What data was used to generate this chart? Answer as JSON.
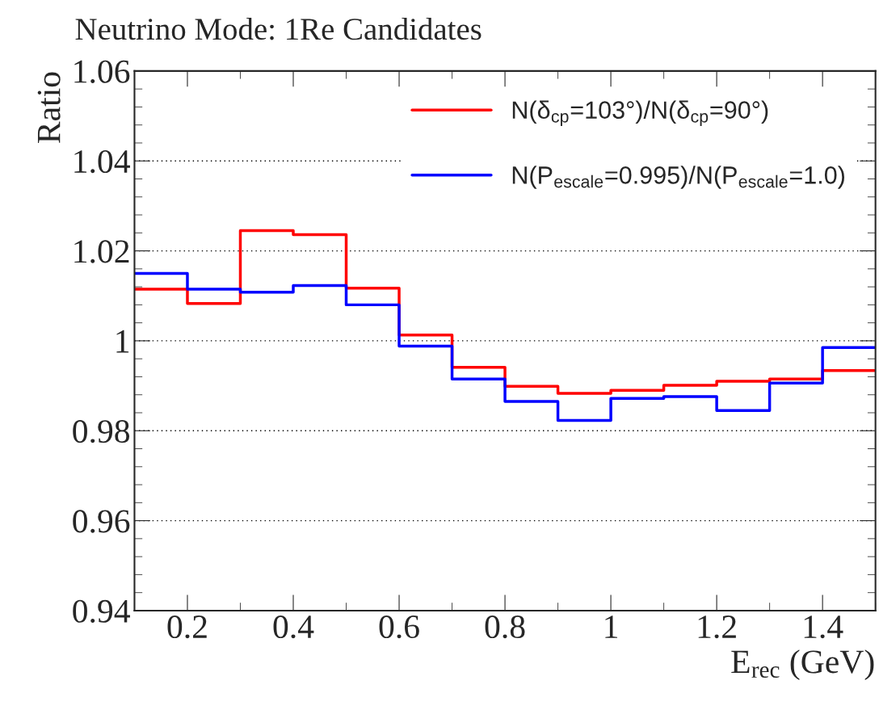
{
  "chart_data": {
    "type": "histogram",
    "title": "Neutrino Mode: 1Re Candidates",
    "xlabel": "E$_{rec}$ (GeV)",
    "ylabel": "Ratio",
    "bins": [
      0.1,
      0.2,
      0.3,
      0.4,
      0.5,
      0.6,
      0.7,
      0.8,
      0.9,
      1.0,
      1.1,
      1.2,
      1.3,
      1.4,
      1.5
    ],
    "series": [
      {
        "name": "N(δ$_{cp}$=103°)/N(δ$_{cp}$=90°)",
        "color": "#ff0000",
        "values": [
          1.0115,
          1.0083,
          1.0245,
          1.0236,
          1.0117,
          1.0013,
          0.9941,
          0.9899,
          0.9883,
          0.989,
          0.9901,
          0.991,
          0.9915,
          0.9934
        ]
      },
      {
        "name": "N(P$_{escale}$=0.995)/N(P$_{escale}$=1.0)",
        "color": "#0000ff",
        "values": [
          1.015,
          1.0115,
          1.0108,
          1.0123,
          1.008,
          0.9988,
          0.9915,
          0.9865,
          0.9823,
          0.9872,
          0.9876,
          0.9845,
          0.9906,
          0.9985
        ]
      }
    ],
    "xlim": [
      0.1,
      1.5
    ],
    "xticks": [
      0.2,
      0.4,
      0.6,
      0.8,
      1,
      1.2,
      1.4
    ],
    "ylim": [
      0.94,
      1.06
    ],
    "yticks": [
      {
        "value": 0.94,
        "label": "0.94"
      },
      {
        "value": 0.96,
        "label": "0.96"
      },
      {
        "value": 0.98,
        "label": "0.98"
      },
      1,
      {
        "value": 1.02,
        "label": "1.02"
      },
      {
        "value": 1.04,
        "label": "1.04"
      },
      {
        "value": 1.06,
        "label": "1.06"
      }
    ],
    "grid": "y",
    "legend": "top right",
    "line_style": "solid"
  }
}
